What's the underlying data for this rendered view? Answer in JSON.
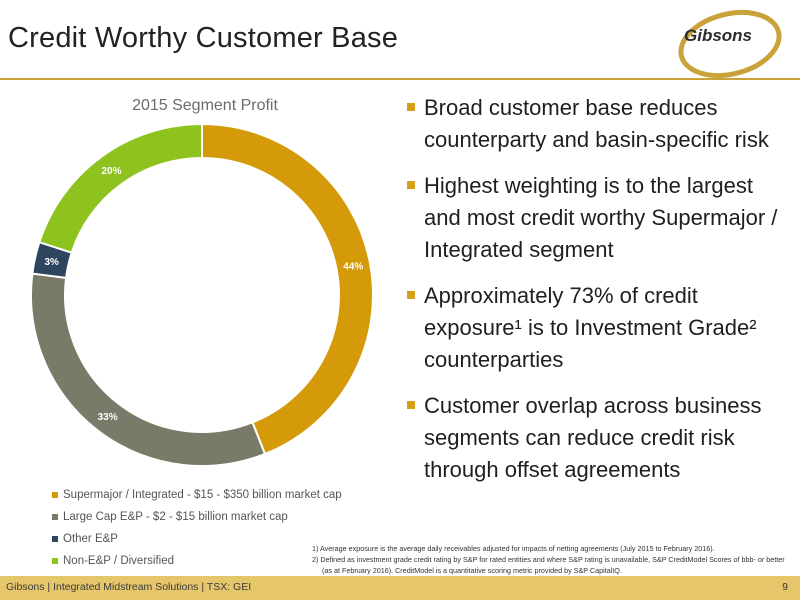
{
  "slide": {
    "title": "Credit Worthy Customer Base",
    "logo_text": "Gibsons"
  },
  "chart_data": {
    "type": "pie",
    "title": "2015 Segment Profit",
    "donut": true,
    "categories": [
      "Supermajor / Integrated - $15 - $350 billion market cap",
      "Large Cap E&P - $2 - $15 billion market cap",
      "Other E&P",
      "Non-E&P / Diversified"
    ],
    "values": [
      44,
      33,
      3,
      20
    ],
    "labels": [
      "44%",
      "33%",
      "3%",
      "20%"
    ],
    "colors": [
      "#D49A0A",
      "#7A7A68",
      "#2E4560",
      "#8DC21F"
    ],
    "legend_position": "bottom"
  },
  "bullets": [
    "Broad customer base reduces counterparty and basin-specific risk",
    "Highest weighting is to the largest and most credit worthy Supermajor / Integrated segment",
    "Approximately 73% of credit exposure¹ is to Investment Grade² counterparties",
    "Customer overlap across business segments can reduce credit risk through offset agreements"
  ],
  "footnotes": [
    "1) Average exposure is the average daily receivables adjusted for impacts of netting agreements (July 2015 to February 2016).",
    "2) Defined as investment grade credit rating by S&P for rated entities and where S&P rating is unavailable, S&P CreditModel Scores of bbb- or better (as at February 2016). CreditModel is a quantitative scoring metric provided by S&P CapitalIQ."
  ],
  "footer": {
    "text": "Gibsons | Integrated Midstream Solutions | TSX: GEI",
    "page": "9"
  },
  "colors": {
    "accent": "#D4A017",
    "footer_bar": "#E6C66A",
    "rule": "#C9A23A"
  }
}
